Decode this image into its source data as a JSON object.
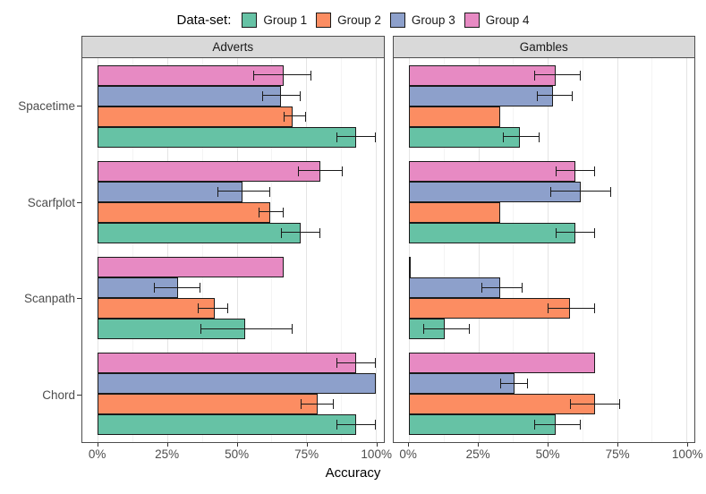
{
  "legend": {
    "title": "Data-set:",
    "items": [
      {
        "label": "Group 1",
        "color": "#66C2A5"
      },
      {
        "label": "Group 2",
        "color": "#FC8D62"
      },
      {
        "label": "Group 3",
        "color": "#8DA0CB"
      },
      {
        "label": "Group 4",
        "color": "#E78AC3"
      }
    ]
  },
  "xlabel": "Accuracy",
  "chart_data": {
    "type": "bar",
    "orientation": "horizontal",
    "title": "",
    "xlabel": "Accuracy",
    "ylabel": "",
    "xlim": [
      0,
      105
    ],
    "x_tick_values": [
      0,
      25,
      50,
      75,
      100
    ],
    "x_ticks": [
      "0%",
      "25%",
      "50%",
      "75%",
      "100%"
    ],
    "x_minor_gridlines": [
      12.5,
      37.5,
      62.5,
      87.5
    ],
    "grid": true,
    "legend_position": "top",
    "categories": [
      "Spacetime",
      "Scarfplot",
      "Scanpath",
      "Chord"
    ],
    "facets": [
      {
        "title": "Adverts",
        "series": [
          {
            "name": "Group 1",
            "values": [
              93,
              73,
              53,
              93
            ],
            "error_low": [
              86,
              66,
              37,
              86
            ],
            "error_high": [
              100,
              80,
              70,
              100
            ]
          },
          {
            "name": "Group 2",
            "values": [
              70,
              62,
              42,
              79
            ],
            "error_low": [
              67,
              58,
              36,
              73
            ],
            "error_high": [
              75,
              67,
              47,
              85
            ]
          },
          {
            "name": "Group 3",
            "values": [
              66,
              52,
              29,
              100
            ],
            "error_low": [
              59,
              43,
              20,
              null
            ],
            "error_high": [
              73,
              62,
              37,
              null
            ]
          },
          {
            "name": "Group 4",
            "values": [
              67,
              80,
              67,
              93
            ],
            "error_low": [
              56,
              72,
              null,
              86
            ],
            "error_high": [
              77,
              88,
              null,
              100
            ]
          }
        ]
      },
      {
        "title": "Gambles",
        "series": [
          {
            "name": "Group 1",
            "values": [
              40,
              60,
              13,
              53
            ],
            "error_low": [
              34,
              53,
              5,
              45
            ],
            "error_high": [
              47,
              67,
              22,
              62
            ]
          },
          {
            "name": "Group 2",
            "values": [
              33,
              33,
              58,
              67
            ],
            "error_low": [
              null,
              null,
              50,
              58
            ],
            "error_high": [
              null,
              null,
              67,
              76
            ]
          },
          {
            "name": "Group 3",
            "values": [
              52,
              62,
              33,
              38
            ],
            "error_low": [
              46,
              51,
              26,
              33
            ],
            "error_high": [
              59,
              73,
              41,
              43
            ]
          },
          {
            "name": "Group 4",
            "values": [
              53,
              60,
              0,
              67
            ],
            "error_low": [
              45,
              53,
              null,
              null
            ],
            "error_high": [
              62,
              67,
              null,
              null
            ]
          }
        ]
      }
    ]
  }
}
